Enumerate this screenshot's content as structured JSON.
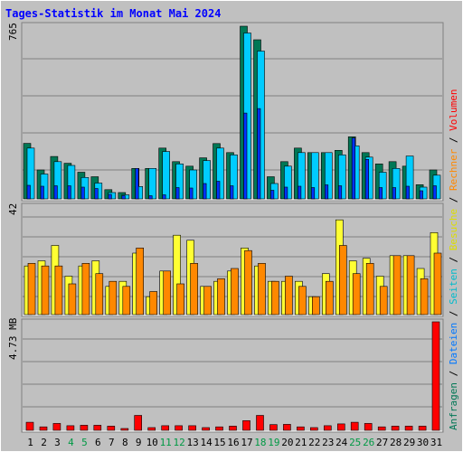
{
  "title": "Tages-Statistik im Monat Mai 2024",
  "colors": {
    "background": "#c0c0c0",
    "frame": "#808080",
    "grid": "#808080",
    "anfragen": "#007755",
    "dateien": "#00ccff",
    "seiten": "#0033ff",
    "besuche": "#ffff33",
    "rechner": "#ff8800",
    "volumen": "#ff0000",
    "weekend_tick": "#009944",
    "weekday_tick": "#000000"
  },
  "chart_data": [
    {
      "type": "bar",
      "panel": "top",
      "y_tick_label": "765",
      "ylim": [
        0,
        765
      ],
      "x": [
        1,
        2,
        3,
        4,
        5,
        6,
        7,
        8,
        9,
        10,
        11,
        12,
        13,
        14,
        15,
        16,
        17,
        18,
        19,
        20,
        21,
        22,
        23,
        24,
        25,
        26,
        27,
        28,
        29,
        30,
        31
      ],
      "series": [
        {
          "name": "Anfragen",
          "values": [
            246,
            128,
            188,
            158,
            118,
            98,
            41,
            28,
            135,
            135,
            225,
            165,
            145,
            182,
            245,
            205,
            765,
            705,
            98,
            165,
            225,
            205,
            205,
            215,
            275,
            205,
            155,
            165,
            145,
            63,
            128
          ]
        },
        {
          "name": "Dateien",
          "values": [
            225,
            110,
            165,
            148,
            95,
            70,
            28,
            18,
            55,
            135,
            210,
            155,
            128,
            170,
            225,
            195,
            735,
            655,
            68,
            145,
            205,
            205,
            205,
            195,
            235,
            185,
            118,
            135,
            190,
            52,
            105
          ]
        },
        {
          "name": "Seiten",
          "values": [
            60,
            56,
            58,
            58,
            52,
            46,
            20,
            14,
            135,
            14,
            18,
            50,
            48,
            68,
            78,
            58,
            380,
            400,
            38,
            52,
            56,
            50,
            62,
            58,
            270,
            175,
            50,
            50,
            56,
            36,
            58
          ]
        }
      ]
    },
    {
      "type": "bar",
      "panel": "middle",
      "y_tick_label": "42",
      "ylim": [
        0,
        42
      ],
      "x": [
        1,
        2,
        3,
        4,
        5,
        6,
        7,
        8,
        9,
        10,
        11,
        12,
        13,
        14,
        15,
        16,
        17,
        18,
        19,
        20,
        21,
        22,
        23,
        24,
        25,
        26,
        27,
        28,
        29,
        30,
        31
      ],
      "series": [
        {
          "name": "Besuche",
          "values": [
            19,
            21,
            27,
            15,
            19,
            21,
            11,
            13,
            24,
            7,
            17,
            31,
            29,
            11,
            13,
            17,
            26,
            19,
            13,
            13,
            13,
            7,
            16,
            37,
            21,
            22,
            15,
            23,
            23,
            18,
            32
          ]
        },
        {
          "name": "Rechner",
          "values": [
            20,
            19,
            19,
            12,
            20,
            16,
            13,
            11,
            26,
            9,
            17,
            12,
            20,
            11,
            14,
            18,
            25,
            20,
            13,
            15,
            11,
            7,
            13,
            27,
            16,
            20,
            11,
            23,
            23,
            14,
            24
          ]
        }
      ]
    },
    {
      "type": "bar",
      "panel": "bottom",
      "y_tick_label": "4.73 MB",
      "ylim": [
        0,
        4.73
      ],
      "x": [
        1,
        2,
        3,
        4,
        5,
        6,
        7,
        8,
        9,
        10,
        11,
        12,
        13,
        14,
        15,
        16,
        17,
        18,
        19,
        20,
        21,
        22,
        23,
        24,
        25,
        26,
        27,
        28,
        29,
        30,
        31
      ],
      "series": [
        {
          "name": "Volumen",
          "values": [
            0.35,
            0.15,
            0.3,
            0.2,
            0.22,
            0.22,
            0.18,
            0.08,
            0.65,
            0.12,
            0.2,
            0.2,
            0.2,
            0.12,
            0.15,
            0.18,
            0.42,
            0.65,
            0.25,
            0.26,
            0.15,
            0.12,
            0.2,
            0.28,
            0.35,
            0.3,
            0.15,
            0.18,
            0.18,
            0.18,
            4.73
          ]
        }
      ]
    }
  ],
  "x_ticks": [
    {
      "label": "1",
      "weekend": false
    },
    {
      "label": "2",
      "weekend": false
    },
    {
      "label": "3",
      "weekend": false
    },
    {
      "label": "4",
      "weekend": true
    },
    {
      "label": "5",
      "weekend": true
    },
    {
      "label": "6",
      "weekend": false
    },
    {
      "label": "7",
      "weekend": false
    },
    {
      "label": "8",
      "weekend": false
    },
    {
      "label": "9",
      "weekend": false
    },
    {
      "label": "10",
      "weekend": false
    },
    {
      "label": "11",
      "weekend": true
    },
    {
      "label": "12",
      "weekend": true
    },
    {
      "label": "13",
      "weekend": false
    },
    {
      "label": "14",
      "weekend": false
    },
    {
      "label": "15",
      "weekend": false
    },
    {
      "label": "16",
      "weekend": false
    },
    {
      "label": "17",
      "weekend": false
    },
    {
      "label": "18",
      "weekend": true
    },
    {
      "label": "19",
      "weekend": true
    },
    {
      "label": "20",
      "weekend": false
    },
    {
      "label": "21",
      "weekend": false
    },
    {
      "label": "22",
      "weekend": false
    },
    {
      "label": "23",
      "weekend": false
    },
    {
      "label": "24",
      "weekend": false
    },
    {
      "label": "25",
      "weekend": true
    },
    {
      "label": "26",
      "weekend": true
    },
    {
      "label": "27",
      "weekend": false
    },
    {
      "label": "28",
      "weekend": false
    },
    {
      "label": "29",
      "weekend": false
    },
    {
      "label": "30",
      "weekend": false
    },
    {
      "label": "31",
      "weekend": false
    }
  ],
  "legend": {
    "top": [
      {
        "text": "Anfragen",
        "color": "#007755"
      },
      {
        "text": " / ",
        "color": "#000000"
      },
      {
        "text": "Dateien",
        "color": "#0077ff"
      },
      {
        "text": " / ",
        "color": "#000000"
      },
      {
        "text": "Seiten",
        "color": "#00bbcc"
      },
      {
        "text": " / ",
        "color": "#000000"
      },
      {
        "text": "Besuche",
        "color": "#dddd00"
      },
      {
        "text": " / ",
        "color": "#000000"
      },
      {
        "text": "Rechner",
        "color": "#ff8800"
      },
      {
        "text": " / ",
        "color": "#000000"
      },
      {
        "text": "Volumen",
        "color": "#ff0000"
      }
    ]
  }
}
